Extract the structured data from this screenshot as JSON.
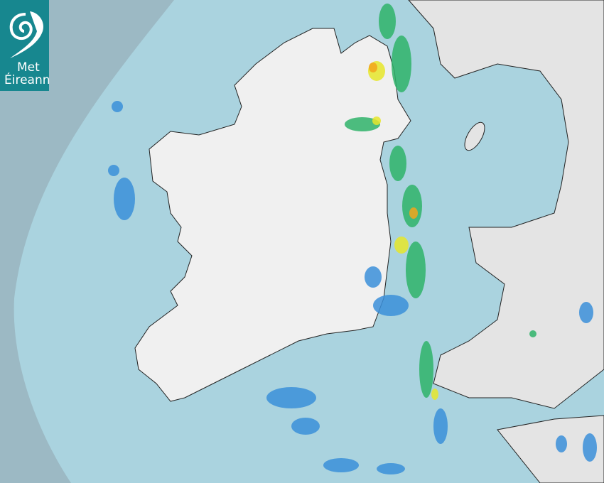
{
  "logo": {
    "line1": "Met",
    "line2": "Éireann",
    "color": "#17878f",
    "icon": "spiral-logo-icon"
  },
  "map": {
    "type": "precipitation-radar",
    "sea_color": "#aad3df",
    "outside_coverage_color": "#9cb9c4",
    "land_color": "#f2f2f2",
    "rain_colors": {
      "light": "#3b8fd9",
      "moderate": "#2fb36a",
      "heavy": "#e6e62a",
      "very_heavy": "#f2a51c"
    }
  }
}
